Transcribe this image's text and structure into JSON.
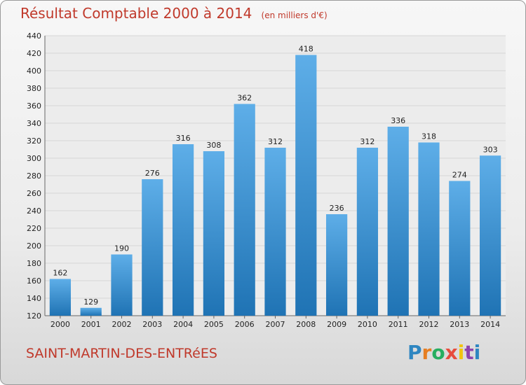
{
  "header": {
    "title": "Résultat Comptable 2000 à 2014",
    "unit": "(en milliers d'€)"
  },
  "footer": {
    "commune": "SAINT-MARTIN-DES-ENTRéES",
    "logo_letters": [
      "P",
      "r",
      "o",
      "x",
      "i",
      "t",
      "i"
    ]
  },
  "colors": {
    "title": "#c0392b",
    "bar_top": "#5eaee8",
    "bar_bottom": "#1f73b4",
    "logo": [
      "#2e86c1",
      "#e67e22",
      "#27ae60",
      "#e74c3c",
      "#f1c40f",
      "#8e44ad",
      "#2e86c1"
    ]
  },
  "chart_data": {
    "type": "bar",
    "title": "Résultat Comptable 2000 à 2014",
    "xlabel": "",
    "ylabel": "",
    "categories": [
      "2000",
      "2001",
      "2002",
      "2003",
      "2004",
      "2005",
      "2006",
      "2007",
      "2008",
      "2009",
      "2010",
      "2011",
      "2012",
      "2013",
      "2014"
    ],
    "values": [
      162,
      129,
      190,
      276,
      316,
      308,
      362,
      312,
      418,
      236,
      312,
      336,
      318,
      274,
      303
    ],
    "ylim": [
      120,
      440
    ],
    "yticks": [
      120,
      140,
      160,
      180,
      200,
      220,
      240,
      260,
      280,
      300,
      320,
      340,
      360,
      380,
      400,
      420,
      440
    ],
    "grid": true,
    "data_labels": true
  }
}
